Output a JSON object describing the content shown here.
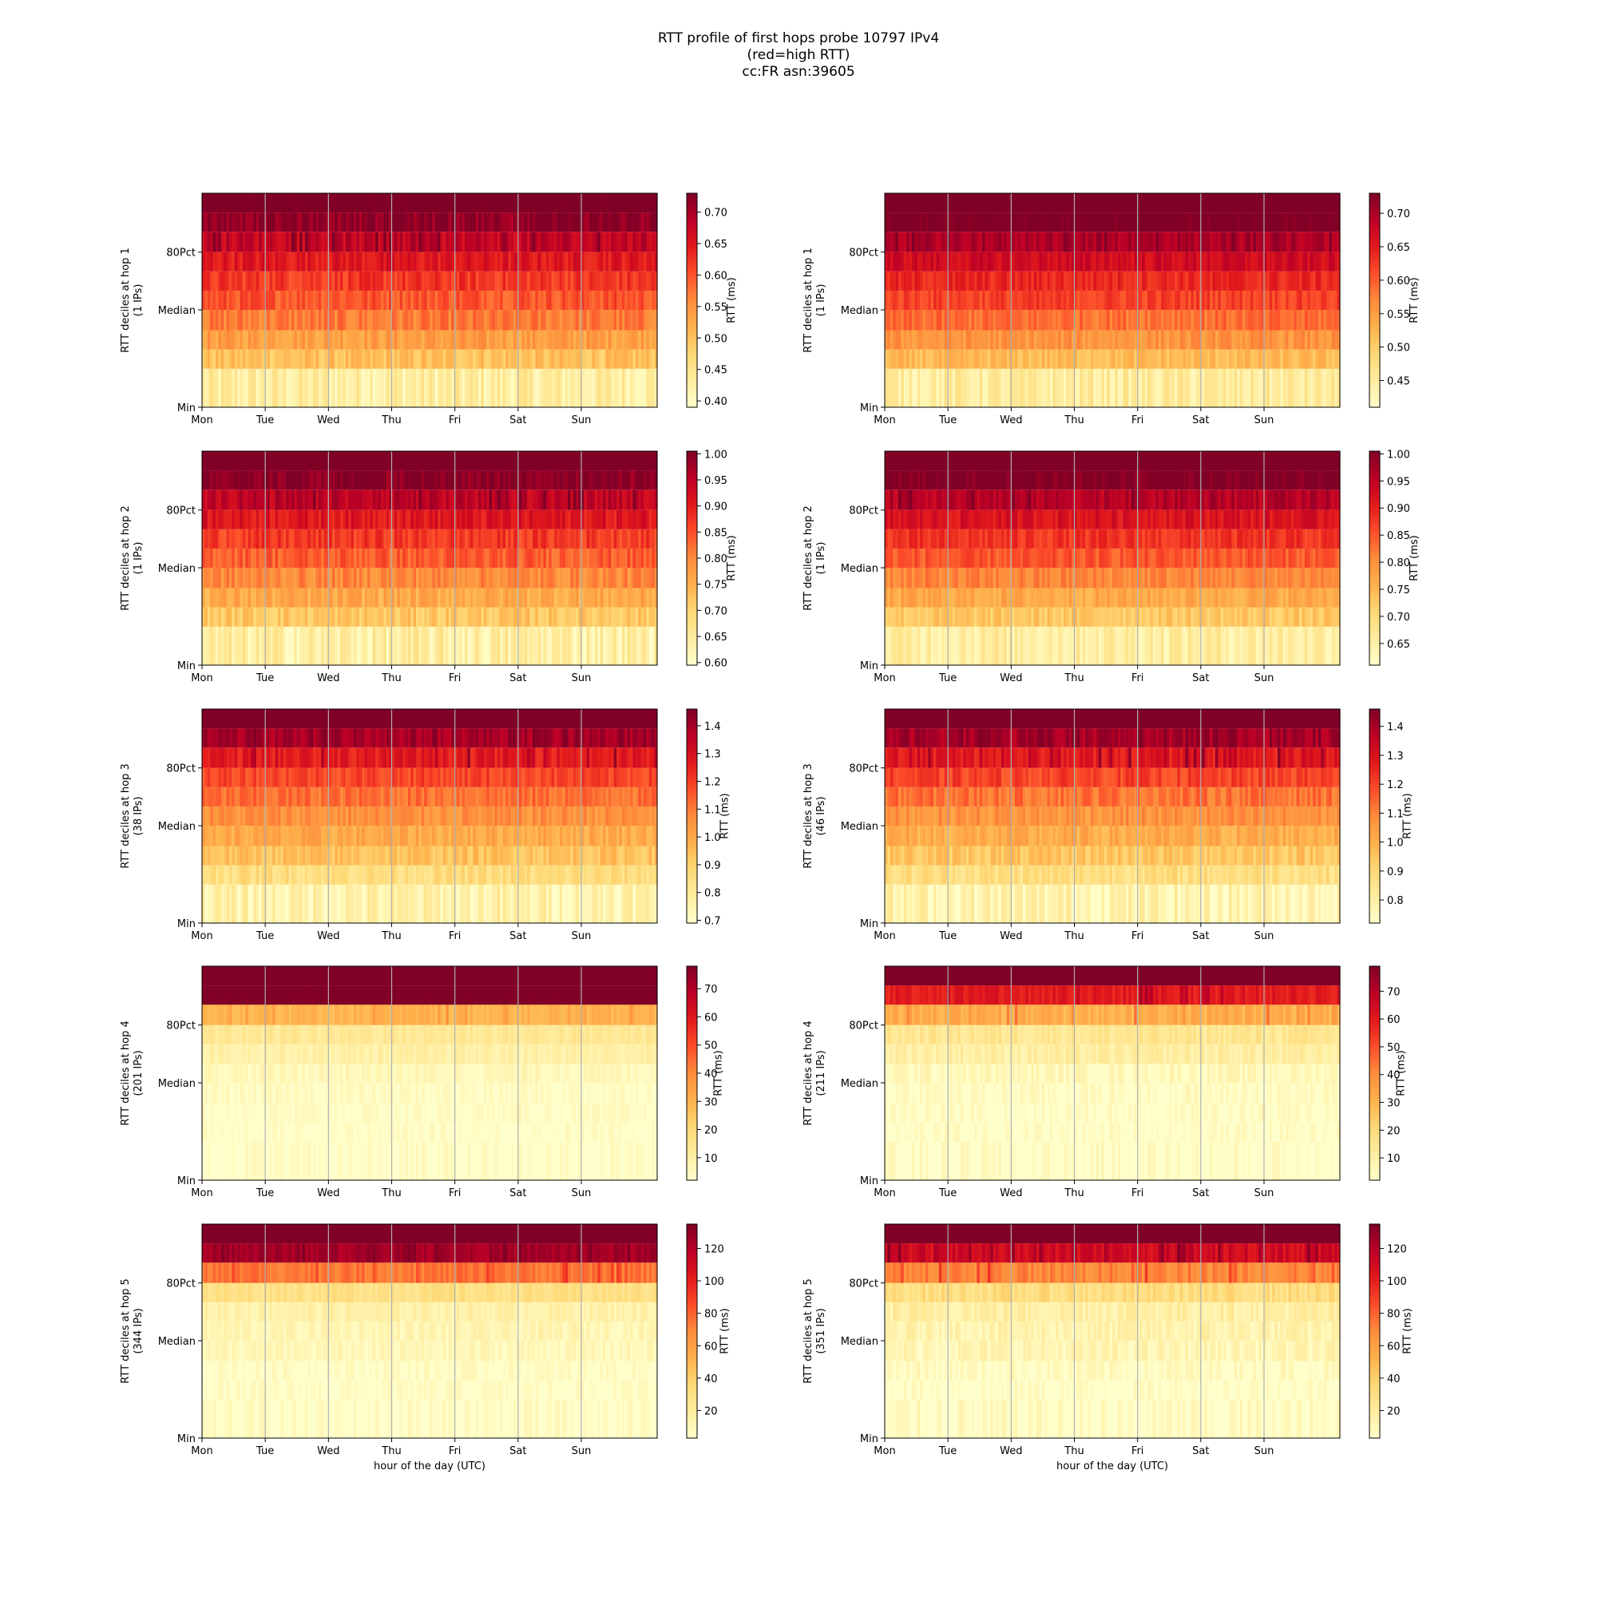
{
  "title_lines": [
    "RTT profile of first hops probe 10797 IPv4",
    "(red=high RTT)",
    "cc:FR asn:39605"
  ],
  "colormap": "YlOrRd",
  "colormap_stops": [
    "#ffffcc",
    "#ffeda0",
    "#fed976",
    "#feb24c",
    "#fd8d3c",
    "#fc4e2a",
    "#e31a1c",
    "#bd0026",
    "#800026"
  ],
  "day_labels": [
    "Mon",
    "Tue",
    "Wed",
    "Thu",
    "Fri",
    "Sat",
    "Sun"
  ],
  "y_tick_labels": [
    "80Pct",
    "Median",
    "Min"
  ],
  "colorbar_label": "RTT (ms)",
  "xlabel": "hour of the day (UTC)",
  "chart_data": [
    {
      "type": "heatmap",
      "hop": 1,
      "ylabel": "RTT deciles at hop 1",
      "ips": "(1 IPs)",
      "clim": [
        0.39,
        0.73
      ],
      "cbar_ticks": [
        "0.40",
        "0.45",
        "0.50",
        "0.55",
        "0.60",
        "0.65",
        "0.70"
      ],
      "decile_levels": [
        0.43,
        0.5,
        0.54,
        0.57,
        0.6,
        0.62,
        0.65,
        0.68,
        0.72,
        0.75
      ],
      "noise": 0.025
    },
    {
      "type": "heatmap",
      "hop": 1,
      "ylabel": "RTT deciles at hop 1",
      "ips": "(1 IPs)",
      "clim": [
        0.41,
        0.73
      ],
      "cbar_ticks": [
        "0.45",
        "0.50",
        "0.55",
        "0.60",
        "0.65",
        "0.70"
      ],
      "decile_levels": [
        0.45,
        0.52,
        0.56,
        0.59,
        0.62,
        0.64,
        0.67,
        0.7,
        0.74,
        0.76
      ],
      "noise": 0.02
    },
    {
      "type": "heatmap",
      "hop": 2,
      "ylabel": "RTT deciles at hop 2",
      "ips": "(1 IPs)",
      "clim": [
        0.595,
        1.005
      ],
      "cbar_ticks": [
        "0.60",
        "0.65",
        "0.70",
        "0.75",
        "0.80",
        "0.85",
        "0.90",
        "0.95",
        "1.00"
      ],
      "decile_levels": [
        0.64,
        0.72,
        0.76,
        0.8,
        0.84,
        0.87,
        0.91,
        0.95,
        1.0,
        1.05
      ],
      "noise": 0.03
    },
    {
      "type": "heatmap",
      "hop": 2,
      "ylabel": "RTT deciles at hop 2",
      "ips": "(1 IPs)",
      "clim": [
        0.61,
        1.005
      ],
      "cbar_ticks": [
        "0.65",
        "0.70",
        "0.75",
        "0.80",
        "0.85",
        "0.90",
        "0.95",
        "1.00"
      ],
      "decile_levels": [
        0.66,
        0.73,
        0.77,
        0.81,
        0.85,
        0.88,
        0.92,
        0.96,
        1.01,
        1.05
      ],
      "noise": 0.025
    },
    {
      "type": "heatmap",
      "hop": 3,
      "ylabel": "RTT deciles at hop 3",
      "ips": "(38 IPs)",
      "clim": [
        0.69,
        1.46
      ],
      "cbar_ticks": [
        "0.7",
        "0.8",
        "0.9",
        "1.0",
        "1.1",
        "1.2",
        "1.3",
        "1.4"
      ],
      "decile_levels": [
        0.76,
        0.86,
        0.94,
        1.0,
        1.06,
        1.12,
        1.19,
        1.27,
        1.4,
        1.55
      ],
      "noise": 0.05
    },
    {
      "type": "heatmap",
      "hop": 3,
      "ylabel": "RTT deciles at hop 3",
      "ips": "(46 IPs)",
      "clim": [
        0.72,
        1.46
      ],
      "cbar_ticks": [
        "0.8",
        "0.9",
        "1.0",
        "1.1",
        "1.2",
        "1.3",
        "1.4"
      ],
      "decile_levels": [
        0.78,
        0.88,
        0.95,
        1.01,
        1.07,
        1.13,
        1.2,
        1.28,
        1.4,
        1.55
      ],
      "noise": 0.05
    },
    {
      "type": "heatmap",
      "hop": 4,
      "ylabel": "RTT deciles at hop 4",
      "ips": "(201 IPs)",
      "clim": [
        2,
        78
      ],
      "cbar_ticks": [
        "10",
        "20",
        "30",
        "40",
        "50",
        "60",
        "70"
      ],
      "decile_levels": [
        2.5,
        3,
        3.5,
        4,
        6,
        10,
        14,
        30,
        80,
        90
      ],
      "noise": 3
    },
    {
      "type": "heatmap",
      "hop": 4,
      "ylabel": "RTT deciles at hop 4",
      "ips": "(211 IPs)",
      "clim": [
        2,
        79
      ],
      "cbar_ticks": [
        "10",
        "20",
        "30",
        "40",
        "50",
        "60",
        "70"
      ],
      "decile_levels": [
        2.5,
        3,
        3.5,
        4,
        6,
        11,
        15,
        32,
        60,
        90
      ],
      "noise": 4
    },
    {
      "type": "heatmap",
      "hop": 5,
      "ylabel": "RTT deciles at hop 5",
      "ips": "(344 IPs)",
      "clim": [
        3,
        135
      ],
      "cbar_ticks": [
        "20",
        "40",
        "60",
        "80",
        "100",
        "120"
      ],
      "decile_levels": [
        4,
        5,
        6,
        10,
        12,
        16,
        30,
        75,
        125,
        150
      ],
      "noise": 6
    },
    {
      "type": "heatmap",
      "hop": 5,
      "ylabel": "RTT deciles at hop 5",
      "ips": "(351 IPs)",
      "clim": [
        3,
        135
      ],
      "cbar_ticks": [
        "20",
        "40",
        "60",
        "80",
        "100",
        "120"
      ],
      "decile_levels": [
        4,
        5,
        7,
        12,
        14,
        18,
        32,
        70,
        110,
        150
      ],
      "noise": 8
    }
  ]
}
